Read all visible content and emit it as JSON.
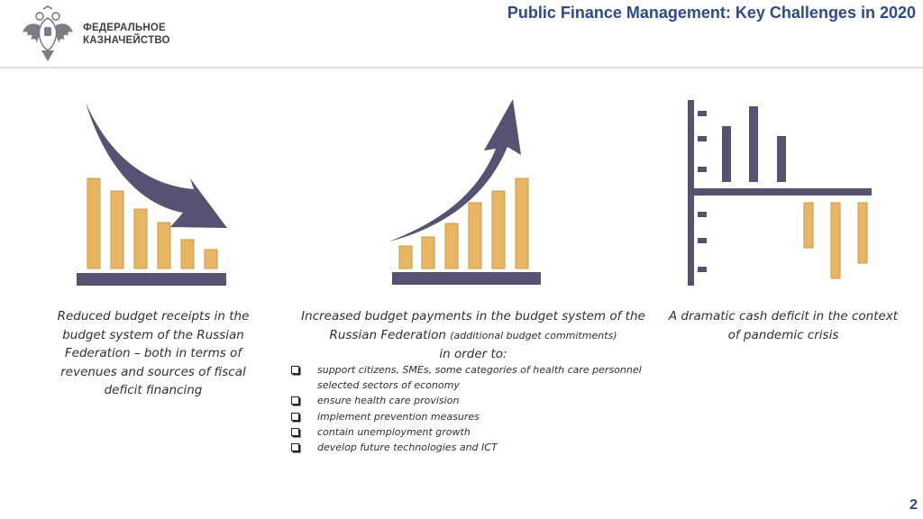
{
  "header": {
    "logo_line1": "ФЕДЕРАЛЬНОЕ",
    "logo_line2": "КАЗНАЧЕЙСТВО",
    "title": "Public Finance Management: Key Challenges in 2020"
  },
  "colors": {
    "bar": "#E8B662",
    "bar_stroke": "#C99A45",
    "dark": "#555272",
    "title": "#2C4A8C"
  },
  "icons": [
    "emblem-icon",
    "decreasing-bars-icon",
    "increasing-bars-icon",
    "deficit-chart-icon",
    "checkbox-bullet-icon"
  ],
  "left": {
    "lines": [
      "Reduced budget receipts in the",
      "budget system of the Russian",
      "Federation – both in terms of",
      "revenues and sources of fiscal",
      "deficit financing"
    ]
  },
  "middle": {
    "line1": "Increased budget payments in the budget system of the",
    "line2_main": "Russian Federation ",
    "line2_small": "(additional budget commitments)",
    "line3": "in order to:",
    "bullets": [
      "support citizens, SMEs, some categories of health care personnel",
      "selected sectors of economy",
      "ensure health care provision",
      "implement prevention measures",
      "contain unemployment growth",
      "develop future technologies and ICT"
    ]
  },
  "right": {
    "lines": [
      "A dramatic cash deficit in the context",
      "of pandemic crisis"
    ]
  },
  "page_number": "2"
}
